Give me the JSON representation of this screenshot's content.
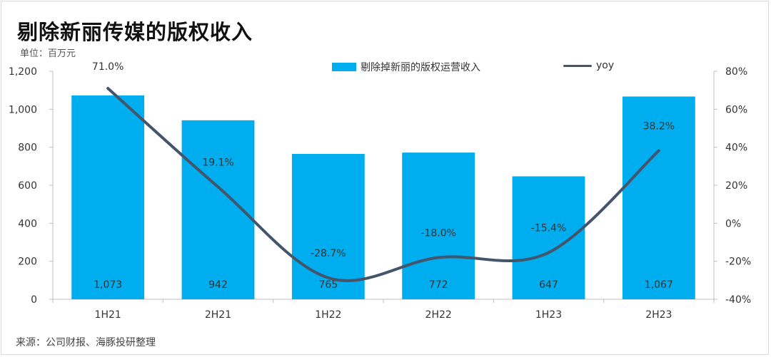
{
  "header": {
    "title": "剔除新丽传媒的版权收入",
    "unit": "单位：百万元"
  },
  "footer": {
    "source": "来源：公司财报、海豚投研整理"
  },
  "colors": {
    "bar": "#00aeef",
    "line": "#44546a",
    "axis": "#bfbfbf"
  },
  "chart_data": {
    "type": "bar",
    "categories": [
      "1H21",
      "2H21",
      "1H22",
      "2H22",
      "1H23",
      "2H23"
    ],
    "series": [
      {
        "name": "剔除掉新丽的版权运营收入",
        "type": "bar",
        "axis": "left",
        "values": [
          1073,
          942,
          765,
          772,
          647,
          1067
        ],
        "labels": [
          "1,073",
          "942",
          "765",
          "772",
          "647",
          "1,067"
        ]
      },
      {
        "name": "yoy",
        "type": "line",
        "axis": "right",
        "values": [
          71.0,
          19.1,
          -28.7,
          -18.0,
          -15.4,
          38.2
        ],
        "labels": [
          "71.0%",
          "19.1%",
          "-28.7%",
          "-18.0%",
          "-15.4%",
          "38.2%"
        ]
      }
    ],
    "y_left": {
      "lim": [
        0,
        1200
      ],
      "ticks": [
        "0",
        "200",
        "400",
        "600",
        "800",
        "1,000",
        "1,200"
      ]
    },
    "y_right": {
      "lim": [
        -40,
        80
      ],
      "ticks": [
        "-40%",
        "-20%",
        "0%",
        "20%",
        "40%",
        "60%",
        "80%"
      ]
    },
    "grid": false,
    "legend": "top"
  }
}
